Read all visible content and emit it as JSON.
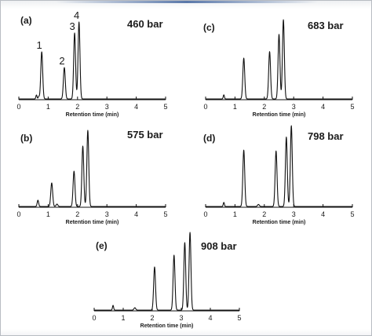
{
  "chart_data": [
    {
      "type": "line",
      "panel": "(a)",
      "pressure": "460 bar",
      "xlabel": "Retention time (min)",
      "xlim": [
        0,
        5
      ],
      "xticks": [
        "0",
        "1",
        "2",
        "3",
        "4",
        "5"
      ],
      "peaks": [
        {
          "label": "1",
          "time": 0.78,
          "height": 0.6
        },
        {
          "label": "2",
          "time": 1.55,
          "height": 0.4
        },
        {
          "label": "3",
          "time": 1.9,
          "height": 0.84
        },
        {
          "label": "4",
          "time": 2.05,
          "height": 0.98
        }
      ]
    },
    {
      "type": "line",
      "panel": "(b)",
      "pressure": "575 bar",
      "xlabel": "Retention time (min)",
      "xlim": [
        0,
        5
      ],
      "xticks": [
        "0",
        "1",
        "2",
        "3",
        "4",
        "5"
      ],
      "peaks": [
        {
          "time": 1.12,
          "height": 0.3
        },
        {
          "time": 1.88,
          "height": 0.45
        },
        {
          "time": 2.18,
          "height": 0.77
        },
        {
          "time": 2.35,
          "height": 0.97
        }
      ]
    },
    {
      "type": "line",
      "panel": "(c)",
      "pressure": "683 bar",
      "xlabel": "Retention time (min)",
      "xlim": [
        0,
        5
      ],
      "xticks": [
        "0",
        "1",
        "2",
        "3",
        "4",
        "5"
      ],
      "peaks": [
        {
          "time": 1.3,
          "height": 0.5
        },
        {
          "time": 2.18,
          "height": 0.58
        },
        {
          "time": 2.5,
          "height": 0.79
        },
        {
          "time": 2.65,
          "height": 0.97
        }
      ]
    },
    {
      "type": "line",
      "panel": "(d)",
      "pressure": "798 bar",
      "xlabel": "Retention time (min)",
      "xlim": [
        0,
        5
      ],
      "xticks": [
        "0",
        "1",
        "2",
        "3",
        "4",
        "5"
      ],
      "peaks": [
        {
          "time": 1.3,
          "height": 0.69
        },
        {
          "time": 2.4,
          "height": 0.68
        },
        {
          "time": 2.75,
          "height": 0.85
        },
        {
          "time": 2.92,
          "height": 0.99
        }
      ]
    },
    {
      "type": "line",
      "panel": "(e)",
      "pressure": "908 bar",
      "xlabel": "Retention time (min)",
      "xlim": [
        0,
        5
      ],
      "xticks": [
        "0",
        "1",
        "2",
        "3",
        "4",
        "5"
      ],
      "peaks": [
        {
          "time": 2.08,
          "height": 0.55
        },
        {
          "time": 2.75,
          "height": 0.7
        },
        {
          "time": 3.12,
          "height": 0.86
        },
        {
          "time": 3.3,
          "height": 0.99
        }
      ]
    }
  ]
}
